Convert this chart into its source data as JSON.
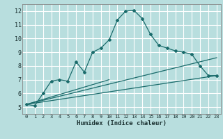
{
  "title": "",
  "xlabel": "Humidex (Indice chaleur)",
  "ylabel": "",
  "bg_color": "#b8dede",
  "grid_color": "#ffffff",
  "line_color": "#1a6b6b",
  "xlim": [
    -0.5,
    23.5
  ],
  "ylim": [
    4.5,
    12.5
  ],
  "xticks": [
    0,
    1,
    2,
    3,
    4,
    5,
    6,
    7,
    8,
    9,
    10,
    11,
    12,
    13,
    14,
    15,
    16,
    17,
    18,
    19,
    20,
    21,
    22,
    23
  ],
  "yticks": [
    5,
    6,
    7,
    8,
    9,
    10,
    11,
    12
  ],
  "curve1_x": [
    0,
    1,
    2,
    3,
    4,
    5,
    6,
    7,
    8,
    9,
    10,
    11,
    12,
    13,
    14,
    15,
    16,
    17,
    18,
    19,
    20,
    21,
    22,
    23
  ],
  "curve1_y": [
    5.2,
    5.1,
    6.0,
    6.9,
    7.0,
    6.9,
    8.3,
    7.55,
    9.0,
    9.3,
    9.9,
    11.35,
    12.0,
    12.05,
    11.45,
    10.3,
    9.5,
    9.3,
    9.1,
    9.0,
    8.85,
    8.0,
    7.3,
    7.3
  ],
  "line1_x": [
    0,
    23
  ],
  "line1_y": [
    5.2,
    7.3
  ],
  "line2_x": [
    0,
    23
  ],
  "line2_y": [
    5.2,
    8.6
  ],
  "line3_x": [
    0,
    10
  ],
  "line3_y": [
    5.2,
    7.0
  ]
}
